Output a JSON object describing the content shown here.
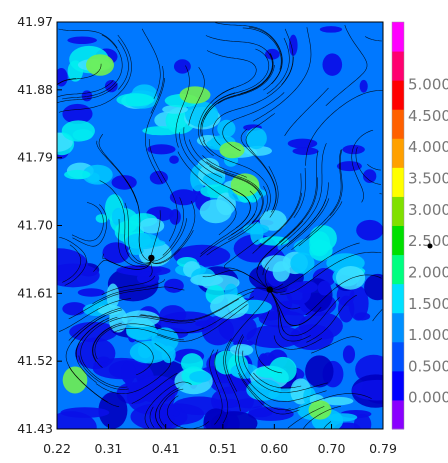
{
  "chart_data": {
    "type": "heatmap",
    "title": "",
    "xlabel": "",
    "ylabel": "",
    "xlim": [
      0.22,
      0.79
    ],
    "ylim": [
      41.43,
      41.97
    ],
    "x_ticks": [
      "0.22",
      "0.31",
      "0.41",
      "0.51",
      "0.60",
      "0.70",
      "0.79"
    ],
    "y_ticks": [
      "41.97",
      "41.88",
      "41.79",
      "41.70",
      "41.61",
      "41.52",
      "41.43"
    ],
    "colorbar": {
      "levels": [
        0.0,
        0.5,
        1.0,
        1.5,
        2.0,
        2.5,
        3.0,
        3.5,
        4.0,
        4.5,
        5.0
      ],
      "labels": [
        "0.000",
        "0.500",
        "1.000",
        "1.500",
        "2.000",
        "2.500",
        "3.000",
        "3.500",
        "4.000",
        "4.500",
        "5.000"
      ],
      "colors": [
        "#8a00ff",
        "#0000ff",
        "#0050ff",
        "#0090ff",
        "#00e0ff",
        "#00ff80",
        "#00e000",
        "#80e000",
        "#ffff00",
        "#ffa000",
        "#ff6000",
        "#ff0000",
        "#ff0070",
        "#ff00ff"
      ]
    },
    "overlay": "streamlines",
    "points": [
      {
        "x": 0.385,
        "y": 41.657
      },
      {
        "x": 0.592,
        "y": 41.615
      }
    ]
  }
}
